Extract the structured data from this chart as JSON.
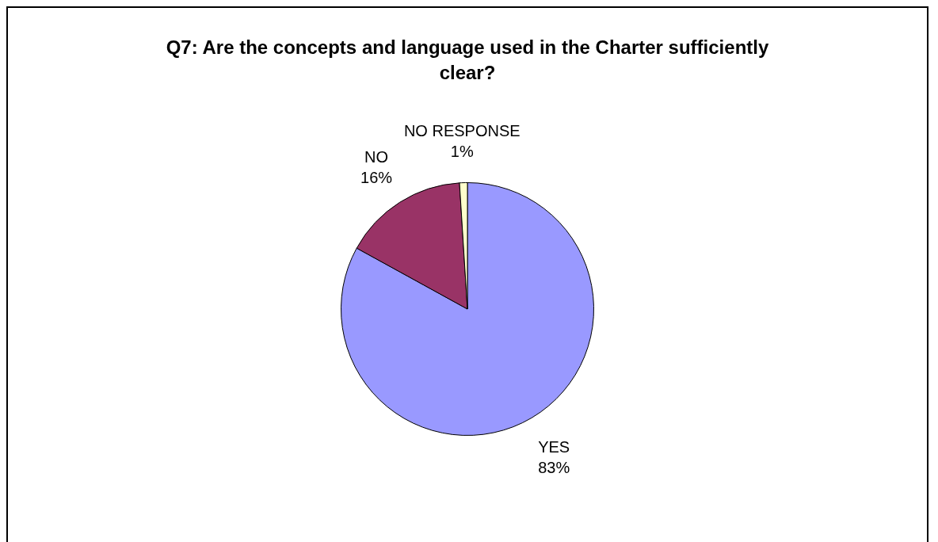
{
  "chart_data": {
    "type": "pie",
    "title": "Q7: Are the concepts and language used in the Charter sufficiently clear?",
    "categories": [
      "YES",
      "NO",
      "NO RESPONSE"
    ],
    "values": [
      83,
      16,
      1
    ],
    "value_labels": [
      "83%",
      "16%",
      "1%"
    ],
    "colors": [
      "#9999ff",
      "#993366",
      "#ffffcc"
    ],
    "legend": false
  }
}
